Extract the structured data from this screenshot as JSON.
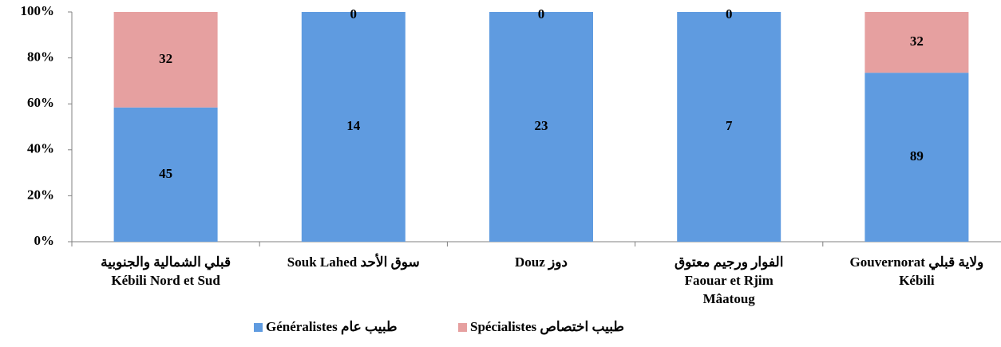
{
  "chart_data": {
    "type": "bar",
    "stacking": "percent",
    "categories": [
      [
        "قبلي الشمالية والجنوبية",
        "Kébili Nord et Sud"
      ],
      [
        "Souk Lahed سوق الأحد"
      ],
      [
        "Douz دوز"
      ],
      [
        "الفوار ورجيم معتوق",
        "Faouar et Rjim",
        "Mâatoug"
      ],
      [
        "Gouvernorat  ولاية قبلي",
        "Kébili"
      ]
    ],
    "series": [
      {
        "name": "Généralistes طبيب عام",
        "color": "#5f9be0",
        "values": [
          45,
          14,
          23,
          7,
          89
        ]
      },
      {
        "name": "Spécialistes طبيب اختصاص",
        "color": "#e6a0a0",
        "values": [
          32,
          0,
          0,
          0,
          32
        ]
      }
    ],
    "ylim": [
      0,
      100
    ],
    "yticks": [
      {
        "value": 0,
        "label": "0%"
      },
      {
        "value": 20,
        "label": "20%"
      },
      {
        "value": 40,
        "label": "40%"
      },
      {
        "value": 60,
        "label": "60%"
      },
      {
        "value": 80,
        "label": "80%"
      },
      {
        "value": 100,
        "label": "100%"
      }
    ],
    "grid": false,
    "legend": "bottom"
  }
}
